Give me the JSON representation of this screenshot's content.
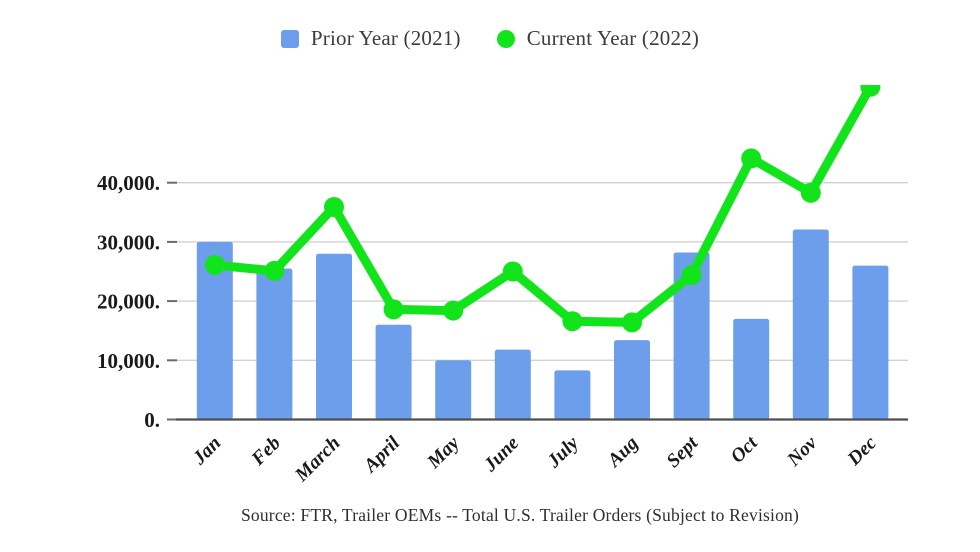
{
  "legend": [
    {
      "label": "Prior Year (2021)",
      "marker": "square",
      "color": "#6d9eeb"
    },
    {
      "label": "Current Year (2022)",
      "marker": "circle",
      "color": "#12e41b"
    }
  ],
  "source_note": "Source: FTR, Trailer OEMs -- Total U.S. Trailer Orders (Subject to Revision)",
  "chart_data": {
    "type": "bar",
    "subtype": "bar+line combo",
    "title": "",
    "xlabel": "",
    "ylabel": "",
    "categories": [
      "Jan",
      "Feb",
      "March",
      "April",
      "May",
      "June",
      "July",
      "Aug",
      "Sept",
      "Oct",
      "Nov",
      "Dec"
    ],
    "series": [
      {
        "name": "Prior Year (2021)",
        "type": "bar",
        "color": "#6d9eeb",
        "values": [
          30000,
          25500,
          28000,
          16000,
          10000,
          11800,
          8300,
          13400,
          28200,
          17000,
          32100,
          26000
        ]
      },
      {
        "name": "Current Year (2022)",
        "type": "line",
        "color": "#12e41b",
        "values": [
          26100,
          25100,
          35900,
          18600,
          18400,
          25000,
          16600,
          16400,
          24400,
          44100,
          38300,
          56200
        ]
      }
    ],
    "yticks": [
      {
        "value": 0,
        "label": "0."
      },
      {
        "value": 10000,
        "label": "10,000."
      },
      {
        "value": 20000,
        "label": "20,000."
      },
      {
        "value": 30000,
        "label": "30,000."
      },
      {
        "value": 40000,
        "label": "40,000."
      }
    ],
    "ylim": [
      0,
      56600
    ],
    "grid": true,
    "legend_position": "top",
    "note": "Dec line point exceeds plot top and is clipped"
  },
  "colors": {
    "bar": "#6d9eeb",
    "line": "#12e41b",
    "gridline": "#d2d2d2",
    "baseline": "#4d4d4d",
    "tick": "#6b6b6b",
    "axis_text": "#1a1a1a"
  }
}
